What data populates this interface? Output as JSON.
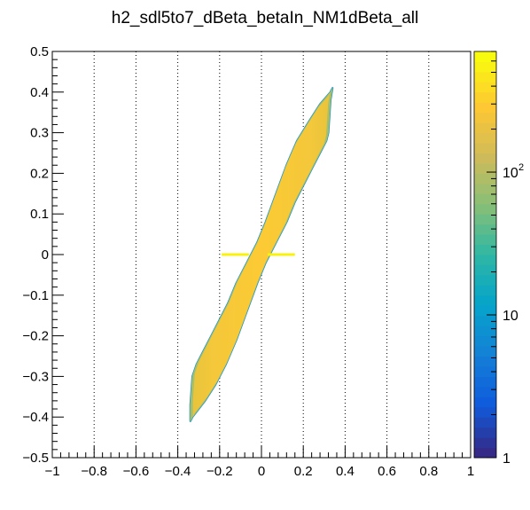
{
  "chart_data": {
    "type": "heatmap",
    "title": "h2_sdl5to7_dBeta_betaIn_NM1dBeta_all",
    "xlim": [
      -1,
      1
    ],
    "ylim": [
      -0.5,
      0.5
    ],
    "x_ticks": [
      {
        "v": -1,
        "label": "−1"
      },
      {
        "v": -0.8,
        "label": "−0.8"
      },
      {
        "v": -0.6,
        "label": "−0.6"
      },
      {
        "v": -0.4,
        "label": "−0.4"
      },
      {
        "v": -0.2,
        "label": "−0.2"
      },
      {
        "v": 0,
        "label": "0"
      },
      {
        "v": 0.2,
        "label": "0.2"
      },
      {
        "v": 0.4,
        "label": "0.4"
      },
      {
        "v": 0.6,
        "label": "0.6"
      },
      {
        "v": 0.8,
        "label": "0.8"
      },
      {
        "v": 1,
        "label": "1"
      }
    ],
    "y_ticks": [
      {
        "v": -0.5,
        "label": "−0.5"
      },
      {
        "v": -0.4,
        "label": "−0.4"
      },
      {
        "v": -0.3,
        "label": "−0.3"
      },
      {
        "v": -0.2,
        "label": "−0.2"
      },
      {
        "v": -0.1,
        "label": "−0.1"
      },
      {
        "v": 0,
        "label": "0"
      },
      {
        "v": 0.1,
        "label": "0.1"
      },
      {
        "v": 0.2,
        "label": "0.2"
      },
      {
        "v": 0.3,
        "label": "0.3"
      },
      {
        "v": 0.4,
        "label": "0.4"
      },
      {
        "v": 0.5,
        "label": "0.5"
      }
    ],
    "x_gridlines": [
      -0.8,
      -0.6,
      -0.4,
      -0.2,
      0,
      0.2,
      0.4,
      0.6,
      0.8
    ],
    "z_scale": "log",
    "z_range": [
      1,
      700
    ],
    "z_ticks": [
      {
        "v": 1,
        "label": "1"
      },
      {
        "v": 10,
        "label": "10"
      },
      {
        "v": 100,
        "label": "10",
        "exp": "2"
      }
    ],
    "palette": [
      "#352a87",
      "#0f5cdd",
      "#1481d6",
      "#06a4ca",
      "#2eb7a4",
      "#87bf77",
      "#d1bb59",
      "#fec832",
      "#f9fb0e"
    ],
    "region": {
      "outline": [
        [
          -0.34,
          -0.41
        ],
        [
          -0.33,
          -0.4
        ],
        [
          -0.27,
          -0.36
        ],
        [
          -0.22,
          -0.32
        ],
        [
          -0.17,
          -0.27
        ],
        [
          -0.12,
          -0.21
        ],
        [
          -0.07,
          -0.14
        ],
        [
          -0.02,
          -0.07
        ],
        [
          0.02,
          -0.02
        ],
        [
          0.07,
          0.03
        ],
        [
          0.12,
          0.08
        ],
        [
          0.16,
          0.13
        ],
        [
          0.2,
          0.17
        ],
        [
          0.24,
          0.21
        ],
        [
          0.28,
          0.25
        ],
        [
          0.31,
          0.28
        ],
        [
          0.32,
          0.3
        ],
        [
          0.33,
          0.38
        ],
        [
          0.34,
          0.41
        ],
        [
          0.33,
          0.4
        ],
        [
          0.28,
          0.37
        ],
        [
          0.23,
          0.33
        ],
        [
          0.17,
          0.28
        ],
        [
          0.12,
          0.22
        ],
        [
          0.07,
          0.15
        ],
        [
          0.02,
          0.08
        ],
        [
          -0.02,
          0.03
        ],
        [
          -0.07,
          -0.02
        ],
        [
          -0.12,
          -0.07
        ],
        [
          -0.16,
          -0.12
        ],
        [
          -0.2,
          -0.16
        ],
        [
          -0.24,
          -0.2
        ],
        [
          -0.28,
          -0.24
        ],
        [
          -0.31,
          -0.27
        ],
        [
          -0.33,
          -0.3
        ],
        [
          -0.34,
          -0.37
        ]
      ],
      "hot_segments": [
        [
          [
            -0.19,
            0.0
          ],
          [
            -0.06,
            0.0
          ]
        ],
        [
          [
            0.03,
            0.0
          ],
          [
            0.16,
            0.0
          ]
        ]
      ]
    }
  }
}
